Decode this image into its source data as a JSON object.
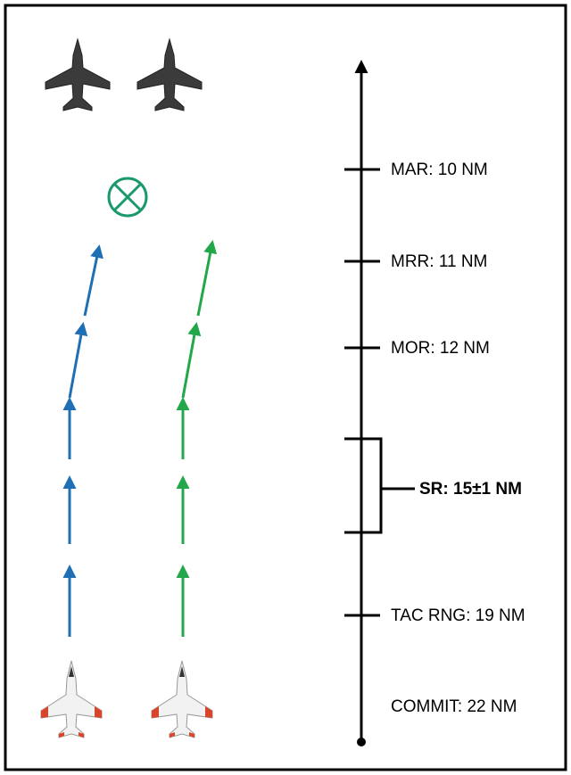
{
  "markers": [
    {
      "label": "MAR: 10 NM"
    },
    {
      "label": "MRR: 11 NM"
    },
    {
      "label": "MOR: 12 NM"
    },
    {
      "label": "SR: 15±1 NM"
    },
    {
      "label": "TAC RNG: 19 NM"
    },
    {
      "label": "COMMIT: 22 NM"
    }
  ]
}
